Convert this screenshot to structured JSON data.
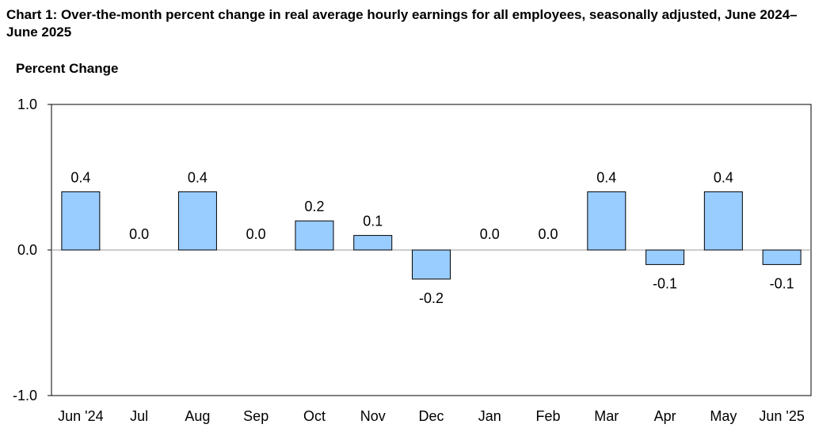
{
  "chart_data": {
    "type": "bar",
    "title": "Chart 1: Over-the-month percent change in real average hourly earnings for all employees, seasonally adjusted, June 2024–June 2025",
    "ylabel": "Percent Change",
    "xlabel": "",
    "categories": [
      "Jun '24",
      "Jul",
      "Aug",
      "Sep",
      "Oct",
      "Nov",
      "Dec",
      "Jan",
      "Feb",
      "Mar",
      "Apr",
      "May",
      "Jun '25"
    ],
    "values": [
      0.4,
      0.0,
      0.4,
      0.0,
      0.2,
      0.1,
      -0.2,
      0.0,
      0.0,
      0.4,
      -0.1,
      0.4,
      -0.1
    ],
    "data_labels": [
      "0.4",
      "0.0",
      "0.4",
      "0.0",
      "0.2",
      "0.1",
      "-0.2",
      "0.0",
      "0.0",
      "0.4",
      "-0.1",
      "0.4",
      "-0.1"
    ],
    "ylim": [
      -1.0,
      1.0
    ],
    "yticks": [
      1.0,
      0.0,
      -1.0
    ],
    "ytick_labels": [
      "1.0",
      "0.0",
      "-1.0"
    ],
    "grid": false,
    "legend": "none",
    "colors": {
      "bar_fill": "#99CCFF",
      "bar_stroke": "#000000",
      "zero_line": "#999999",
      "axes": "#000000"
    }
  }
}
